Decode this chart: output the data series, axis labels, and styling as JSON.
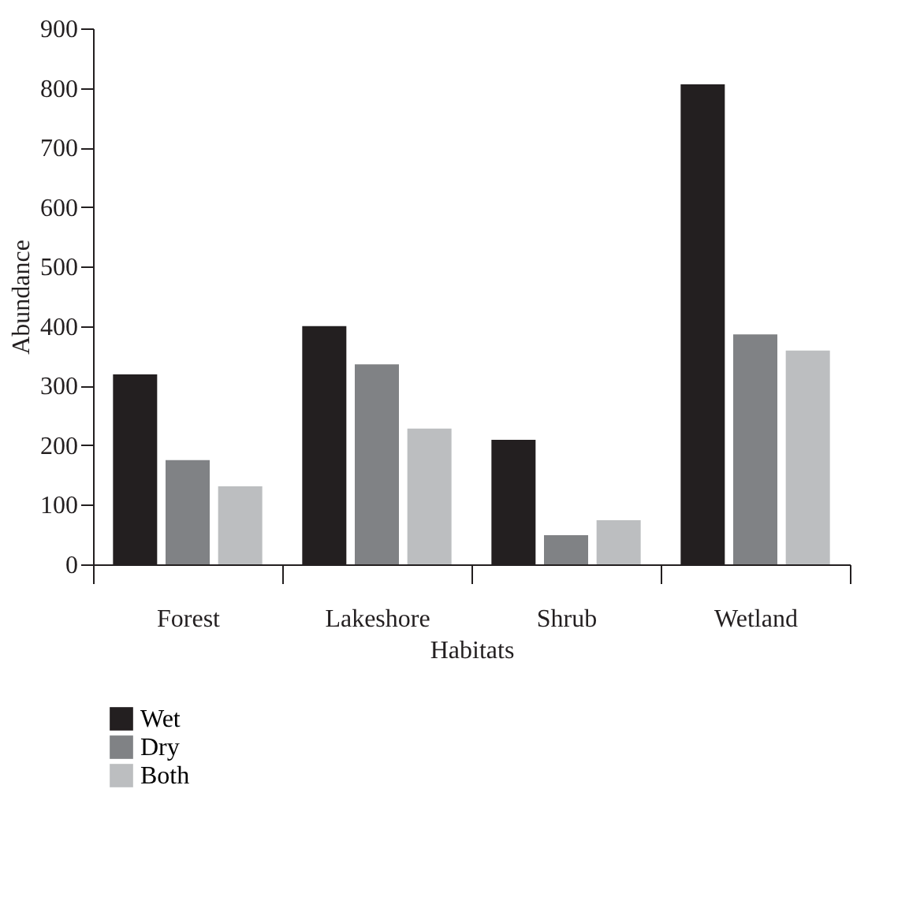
{
  "chart_data": {
    "type": "bar",
    "xlabel": "Habitats",
    "ylabel": "Abundance",
    "categories": [
      "Forest",
      "Lakeshore",
      "Shrub",
      "Wetland"
    ],
    "series": [
      {
        "name": "Wet",
        "color": "#231f20",
        "values": [
          319,
          400,
          209,
          806
        ]
      },
      {
        "name": "Dry",
        "color": "#808285",
        "values": [
          175,
          336,
          49,
          386
        ]
      },
      {
        "name": "Both",
        "color": "#bcbec0",
        "values": [
          131,
          228,
          74,
          359
        ]
      }
    ],
    "ylim": [
      0,
      900
    ],
    "yticks": [
      0,
      100,
      200,
      300,
      400,
      500,
      600,
      700,
      800,
      900
    ],
    "grid": false,
    "legend": "bottom left"
  }
}
